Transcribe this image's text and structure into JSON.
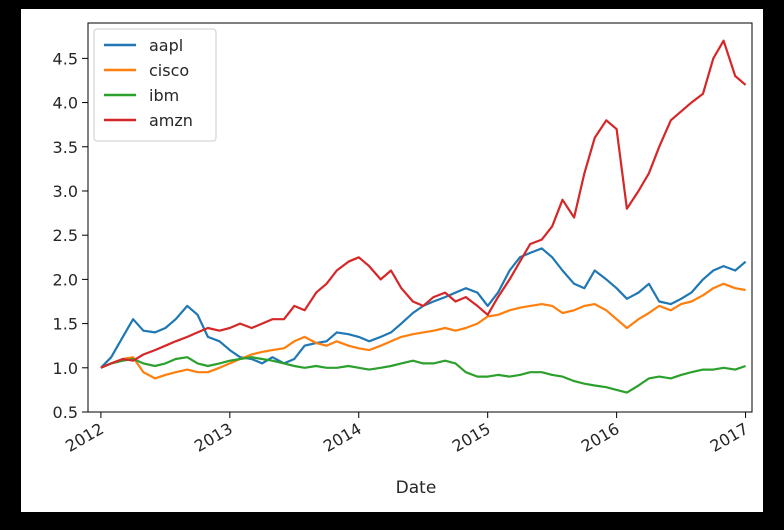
{
  "chart_data": {
    "type": "line",
    "xlabel": "Date",
    "ylabel": "",
    "title": "",
    "x_ticks": [
      "2012",
      "2013",
      "2014",
      "2015",
      "2016",
      "2017"
    ],
    "y_ticks": [
      "0.5",
      "1.0",
      "1.5",
      "2.0",
      "2.5",
      "3.0",
      "3.5",
      "4.0",
      "4.5"
    ],
    "xlim": [
      2011.9,
      2017.05
    ],
    "ylim": [
      0.5,
      4.9
    ],
    "legend_position": "top-left",
    "grid": false,
    "series": [
      {
        "name": "aapl",
        "color": "#1f77b4",
        "x": [
          2012.0,
          2012.08,
          2012.17,
          2012.25,
          2012.33,
          2012.42,
          2012.5,
          2012.58,
          2012.67,
          2012.75,
          2012.83,
          2012.92,
          2013.0,
          2013.08,
          2013.17,
          2013.25,
          2013.33,
          2013.42,
          2013.5,
          2013.58,
          2013.67,
          2013.75,
          2013.83,
          2013.92,
          2014.0,
          2014.08,
          2014.17,
          2014.25,
          2014.33,
          2014.42,
          2014.5,
          2014.58,
          2014.67,
          2014.75,
          2014.83,
          2014.92,
          2015.0,
          2015.08,
          2015.17,
          2015.25,
          2015.33,
          2015.42,
          2015.5,
          2015.58,
          2015.67,
          2015.75,
          2015.83,
          2015.92,
          2016.0,
          2016.08,
          2016.17,
          2016.25,
          2016.33,
          2016.42,
          2016.5,
          2016.58,
          2016.67,
          2016.75,
          2016.83,
          2016.92,
          2017.0
        ],
        "values": [
          1.0,
          1.12,
          1.35,
          1.55,
          1.42,
          1.4,
          1.45,
          1.55,
          1.7,
          1.6,
          1.35,
          1.3,
          1.2,
          1.12,
          1.1,
          1.05,
          1.12,
          1.05,
          1.1,
          1.25,
          1.28,
          1.3,
          1.4,
          1.38,
          1.35,
          1.3,
          1.35,
          1.4,
          1.5,
          1.62,
          1.7,
          1.75,
          1.8,
          1.85,
          1.9,
          1.85,
          1.7,
          1.85,
          2.1,
          2.25,
          2.3,
          2.35,
          2.25,
          2.1,
          1.95,
          1.9,
          2.1,
          2.0,
          1.9,
          1.78,
          1.85,
          1.95,
          1.75,
          1.72,
          1.78,
          1.85,
          2.0,
          2.1,
          2.15,
          2.1,
          2.2
        ]
      },
      {
        "name": "cisco",
        "color": "#ff7f0e",
        "x": [
          2012.0,
          2012.08,
          2012.17,
          2012.25,
          2012.33,
          2012.42,
          2012.5,
          2012.58,
          2012.67,
          2012.75,
          2012.83,
          2012.92,
          2013.0,
          2013.08,
          2013.17,
          2013.25,
          2013.33,
          2013.42,
          2013.5,
          2013.58,
          2013.67,
          2013.75,
          2013.83,
          2013.92,
          2014.0,
          2014.08,
          2014.17,
          2014.25,
          2014.33,
          2014.42,
          2014.5,
          2014.58,
          2014.67,
          2014.75,
          2014.83,
          2014.92,
          2015.0,
          2015.08,
          2015.17,
          2015.25,
          2015.33,
          2015.42,
          2015.5,
          2015.58,
          2015.67,
          2015.75,
          2015.83,
          2015.92,
          2016.0,
          2016.08,
          2016.17,
          2016.25,
          2016.33,
          2016.42,
          2016.5,
          2016.58,
          2016.67,
          2016.75,
          2016.83,
          2016.92,
          2017.0
        ],
        "values": [
          1.0,
          1.05,
          1.1,
          1.12,
          0.95,
          0.88,
          0.92,
          0.95,
          0.98,
          0.95,
          0.95,
          1.0,
          1.05,
          1.1,
          1.15,
          1.18,
          1.2,
          1.22,
          1.3,
          1.35,
          1.28,
          1.25,
          1.3,
          1.25,
          1.22,
          1.2,
          1.25,
          1.3,
          1.35,
          1.38,
          1.4,
          1.42,
          1.45,
          1.42,
          1.45,
          1.5,
          1.58,
          1.6,
          1.65,
          1.68,
          1.7,
          1.72,
          1.7,
          1.62,
          1.65,
          1.7,
          1.72,
          1.65,
          1.55,
          1.45,
          1.55,
          1.62,
          1.7,
          1.65,
          1.72,
          1.75,
          1.82,
          1.9,
          1.95,
          1.9,
          1.88
        ]
      },
      {
        "name": "ibm",
        "color": "#2ca02c",
        "x": [
          2012.0,
          2012.08,
          2012.17,
          2012.25,
          2012.33,
          2012.42,
          2012.5,
          2012.58,
          2012.67,
          2012.75,
          2012.83,
          2012.92,
          2013.0,
          2013.08,
          2013.17,
          2013.25,
          2013.33,
          2013.42,
          2013.5,
          2013.58,
          2013.67,
          2013.75,
          2013.83,
          2013.92,
          2014.0,
          2014.08,
          2014.17,
          2014.25,
          2014.33,
          2014.42,
          2014.5,
          2014.58,
          2014.67,
          2014.75,
          2014.83,
          2014.92,
          2015.0,
          2015.08,
          2015.17,
          2015.25,
          2015.33,
          2015.42,
          2015.5,
          2015.58,
          2015.67,
          2015.75,
          2015.83,
          2015.92,
          2016.0,
          2016.08,
          2016.17,
          2016.25,
          2016.33,
          2016.42,
          2016.5,
          2016.58,
          2016.67,
          2016.75,
          2016.83,
          2016.92,
          2017.0
        ],
        "values": [
          1.0,
          1.05,
          1.08,
          1.1,
          1.05,
          1.02,
          1.05,
          1.1,
          1.12,
          1.05,
          1.02,
          1.05,
          1.08,
          1.1,
          1.12,
          1.1,
          1.08,
          1.05,
          1.02,
          1.0,
          1.02,
          1.0,
          1.0,
          1.02,
          1.0,
          0.98,
          1.0,
          1.02,
          1.05,
          1.08,
          1.05,
          1.05,
          1.08,
          1.05,
          0.95,
          0.9,
          0.9,
          0.92,
          0.9,
          0.92,
          0.95,
          0.95,
          0.92,
          0.9,
          0.85,
          0.82,
          0.8,
          0.78,
          0.75,
          0.72,
          0.8,
          0.88,
          0.9,
          0.88,
          0.92,
          0.95,
          0.98,
          0.98,
          1.0,
          0.98,
          1.02
        ]
      },
      {
        "name": "amzn",
        "color": "#d62728",
        "x": [
          2012.0,
          2012.08,
          2012.17,
          2012.25,
          2012.33,
          2012.42,
          2012.5,
          2012.58,
          2012.67,
          2012.75,
          2012.83,
          2012.92,
          2013.0,
          2013.08,
          2013.17,
          2013.25,
          2013.33,
          2013.42,
          2013.5,
          2013.58,
          2013.67,
          2013.75,
          2013.83,
          2013.92,
          2014.0,
          2014.08,
          2014.17,
          2014.25,
          2014.33,
          2014.42,
          2014.5,
          2014.58,
          2014.67,
          2014.75,
          2014.83,
          2014.92,
          2015.0,
          2015.08,
          2015.17,
          2015.25,
          2015.33,
          2015.42,
          2015.5,
          2015.58,
          2015.67,
          2015.75,
          2015.83,
          2015.92,
          2016.0,
          2016.08,
          2016.17,
          2016.25,
          2016.33,
          2016.42,
          2016.5,
          2016.58,
          2016.67,
          2016.75,
          2016.83,
          2016.92,
          2017.0
        ],
        "values": [
          1.0,
          1.05,
          1.1,
          1.08,
          1.15,
          1.2,
          1.25,
          1.3,
          1.35,
          1.4,
          1.45,
          1.42,
          1.45,
          1.5,
          1.45,
          1.5,
          1.55,
          1.55,
          1.7,
          1.65,
          1.85,
          1.95,
          2.1,
          2.2,
          2.25,
          2.15,
          2.0,
          2.1,
          1.9,
          1.75,
          1.7,
          1.8,
          1.85,
          1.75,
          1.8,
          1.7,
          1.6,
          1.8,
          2.0,
          2.2,
          2.4,
          2.45,
          2.6,
          2.9,
          2.7,
          3.2,
          3.6,
          3.8,
          3.7,
          2.8,
          3.0,
          3.2,
          3.5,
          3.8,
          3.9,
          4.0,
          4.1,
          4.5,
          4.7,
          4.3,
          4.2
        ]
      }
    ]
  }
}
